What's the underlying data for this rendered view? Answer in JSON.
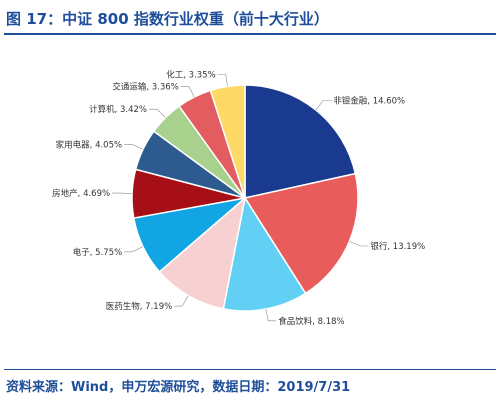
{
  "figure": {
    "title": "图 17：中证 800 指数行业权重（前十大行业）",
    "source": "资料来源：Wind，申万宏源研究，数据日期：2019/7/31"
  },
  "chart_data": {
    "type": "pie",
    "title": "",
    "start_angle_deg": 0,
    "direction": "clockwise",
    "slices": [
      {
        "label": "非银金融",
        "value": 14.6,
        "display": "非银金融, 14.60%",
        "color": "#1a3a8f"
      },
      {
        "label": "银行",
        "value": 13.19,
        "display": "银行, 13.19%",
        "color": "#e85c5c"
      },
      {
        "label": "食品饮料",
        "value": 8.18,
        "display": "食品饮料, 8.18%",
        "color": "#62d0f5"
      },
      {
        "label": "医药生物",
        "value": 7.19,
        "display": "医药生物, 7.19%",
        "color": "#f7d1d1"
      },
      {
        "label": "电子",
        "value": 5.75,
        "display": "电子, 5.75%",
        "color": "#12a5e3"
      },
      {
        "label": "房地产",
        "value": 4.69,
        "display": "房地产, 4.69%",
        "color": "#a50f15"
      },
      {
        "label": "家用电器",
        "value": 4.05,
        "display": "家用电器, 4.05%",
        "color": "#2d5b8f"
      },
      {
        "label": "计算机",
        "value": 3.42,
        "display": "计算机, 3.42%",
        "color": "#a9d18e"
      },
      {
        "label": "交通运输",
        "value": 3.36,
        "display": "交通运输, 3.36%",
        "color": "#e35d60"
      },
      {
        "label": "化工",
        "value": 3.35,
        "display": "化工, 3.35%",
        "color": "#ffd966"
      }
    ]
  }
}
